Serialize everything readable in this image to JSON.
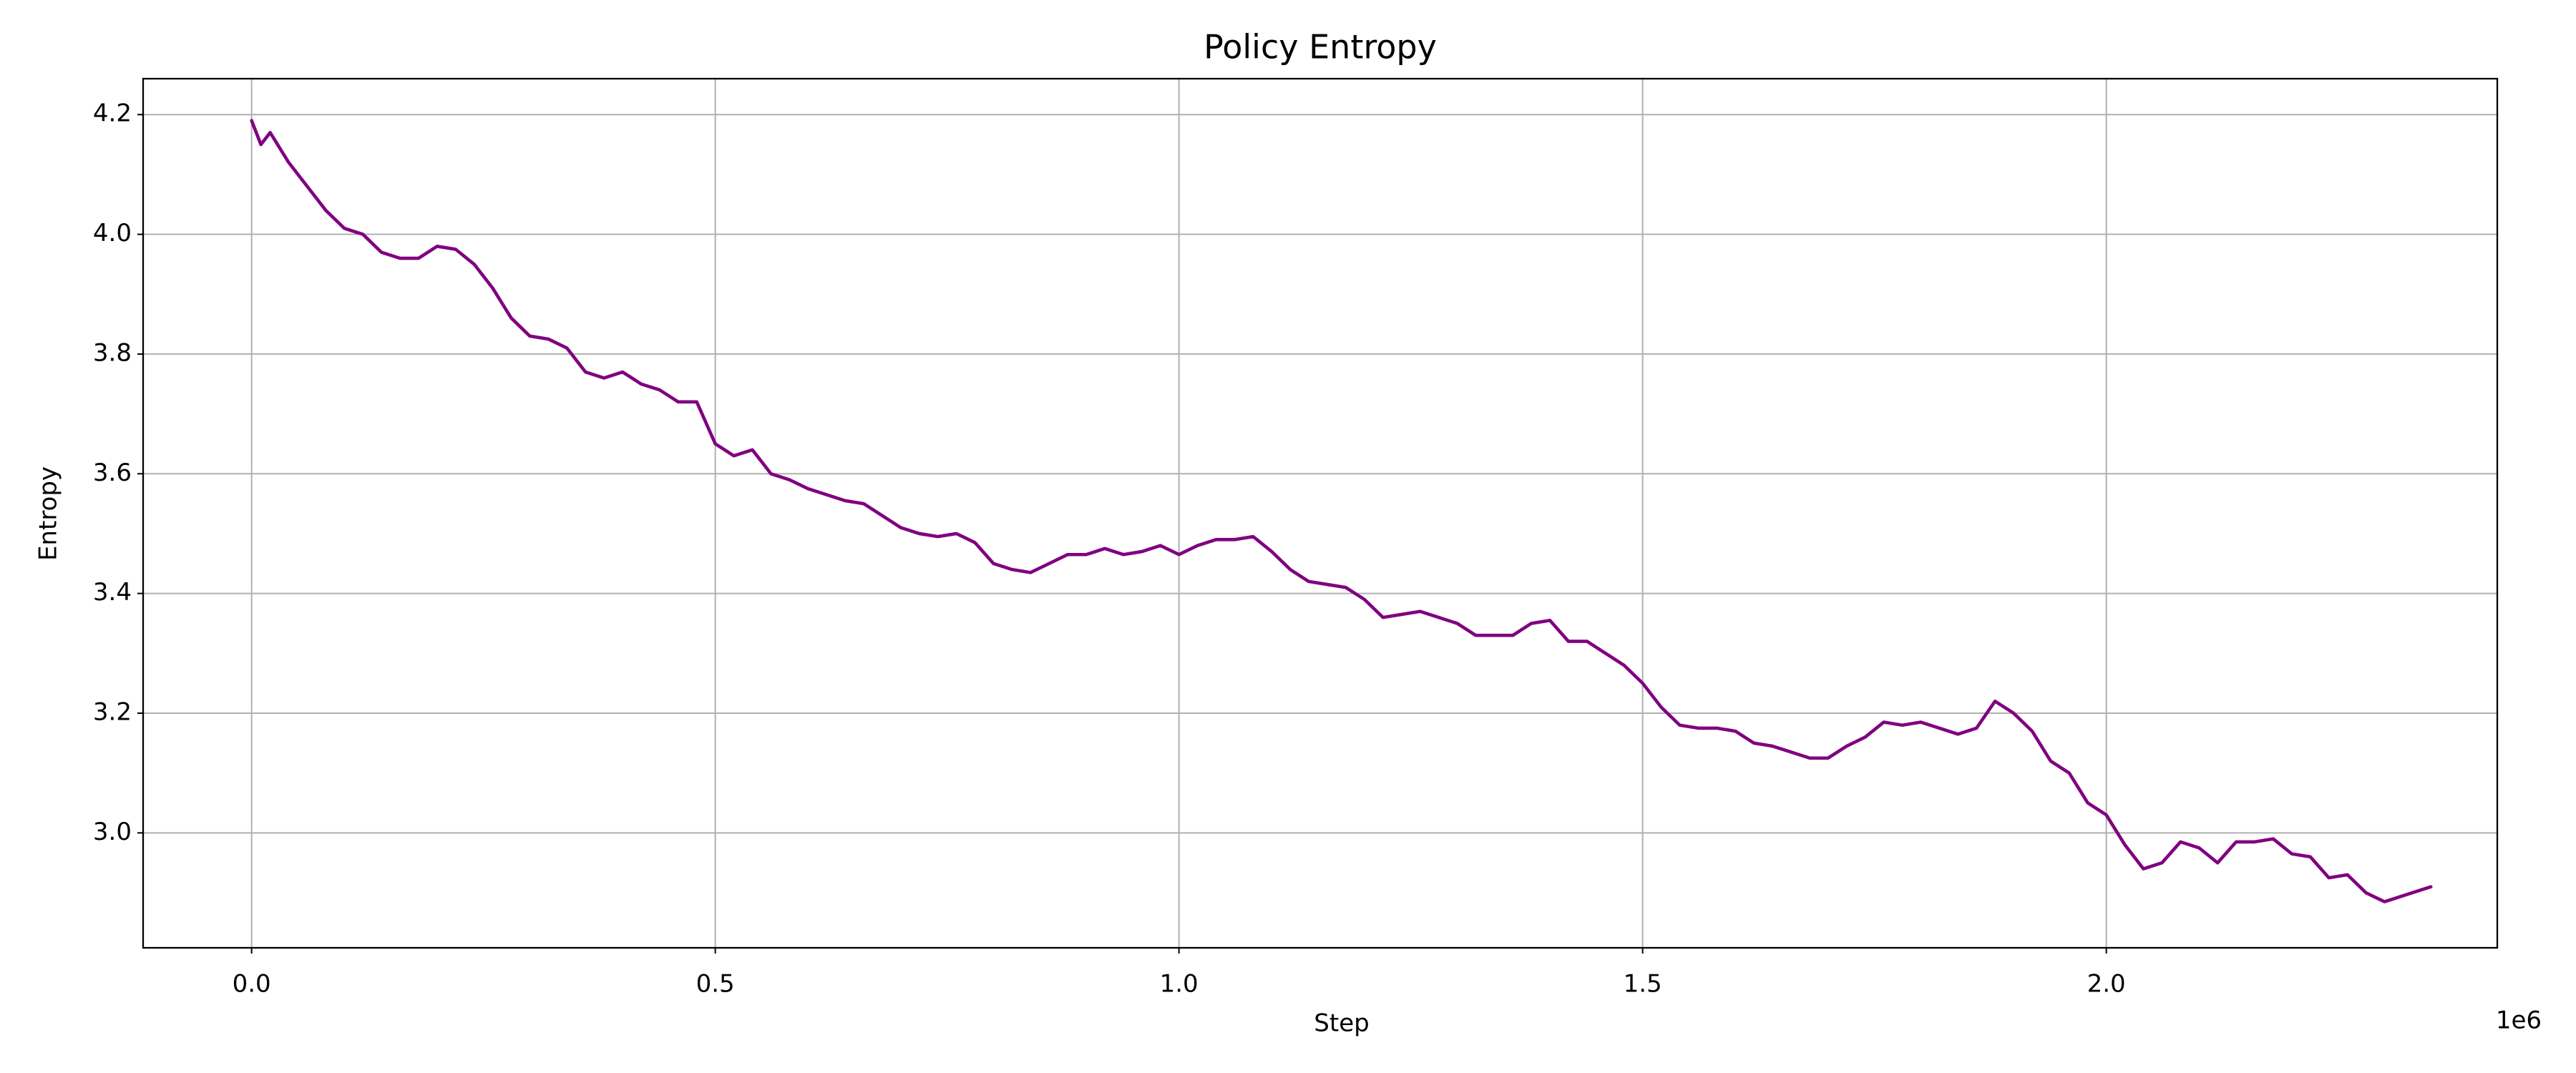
{
  "chart_data": {
    "type": "line",
    "title": "Policy Entropy",
    "x_label": "Step",
    "y_label": "Entropy",
    "x_offset_label": "1e6",
    "color": "#800080",
    "grid": true,
    "xlim": [
      -117000,
      2421600
    ],
    "ylim": [
      2.808,
      4.26
    ],
    "xticks": [
      {
        "value": 0,
        "label": "0.0"
      },
      {
        "value": 500000,
        "label": "0.5"
      },
      {
        "value": 1000000,
        "label": "1.0"
      },
      {
        "value": 1500000,
        "label": "1.5"
      },
      {
        "value": 2000000,
        "label": "2.0"
      }
    ],
    "yticks": [
      {
        "value": 3.0,
        "label": "3.0"
      },
      3.2,
      3.4,
      3.6,
      3.8,
      {
        "value": 4.0,
        "label": "4.0"
      },
      4.2
    ],
    "x": [
      0,
      10000,
      20000,
      40000,
      60000,
      80000,
      100000,
      120000,
      140000,
      160000,
      180000,
      200000,
      220000,
      240000,
      260000,
      280000,
      300000,
      320000,
      340000,
      360000,
      380000,
      400000,
      420000,
      440000,
      460000,
      480000,
      500000,
      520000,
      540000,
      560000,
      580000,
      600000,
      620000,
      640000,
      660000,
      680000,
      700000,
      720000,
      740000,
      760000,
      780000,
      800000,
      820000,
      840000,
      860000,
      880000,
      900000,
      920000,
      940000,
      960000,
      980000,
      1000000,
      1020000,
      1040000,
      1060000,
      1080000,
      1100000,
      1120000,
      1140000,
      1160000,
      1180000,
      1200000,
      1220000,
      1240000,
      1260000,
      1280000,
      1300000,
      1320000,
      1340000,
      1360000,
      1380000,
      1400000,
      1420000,
      1440000,
      1460000,
      1480000,
      1500000,
      1520000,
      1540000,
      1560000,
      1580000,
      1600000,
      1620000,
      1640000,
      1660000,
      1680000,
      1700000,
      1720000,
      1740000,
      1760000,
      1780000,
      1800000,
      1820000,
      1840000,
      1860000,
      1880000,
      1900000,
      1920000,
      1940000,
      1960000,
      1980000,
      2000000,
      2020000,
      2040000,
      2060000,
      2080000,
      2100000,
      2120000,
      2140000,
      2160000,
      2180000,
      2200000,
      2220000,
      2240000,
      2260000,
      2280000,
      2300000,
      2320000,
      2340000,
      2350000
    ],
    "values": [
      4.19,
      4.15,
      4.17,
      4.12,
      4.08,
      4.04,
      4.01,
      4.0,
      3.97,
      3.96,
      3.96,
      3.98,
      3.975,
      3.95,
      3.91,
      3.86,
      3.83,
      3.825,
      3.81,
      3.77,
      3.76,
      3.77,
      3.75,
      3.74,
      3.72,
      3.72,
      3.65,
      3.63,
      3.64,
      3.6,
      3.59,
      3.575,
      3.565,
      3.555,
      3.55,
      3.53,
      3.51,
      3.5,
      3.495,
      3.5,
      3.485,
      3.45,
      3.44,
      3.435,
      3.45,
      3.465,
      3.465,
      3.475,
      3.465,
      3.47,
      3.48,
      3.465,
      3.48,
      3.49,
      3.49,
      3.495,
      3.47,
      3.44,
      3.42,
      3.415,
      3.41,
      3.39,
      3.36,
      3.365,
      3.37,
      3.36,
      3.35,
      3.33,
      3.33,
      3.33,
      3.35,
      3.355,
      3.32,
      3.32,
      3.3,
      3.28,
      3.25,
      3.21,
      3.18,
      3.175,
      3.175,
      3.17,
      3.15,
      3.145,
      3.135,
      3.125,
      3.125,
      3.145,
      3.16,
      3.185,
      3.18,
      3.185,
      3.175,
      3.165,
      3.175,
      3.22,
      3.2,
      3.17,
      3.12,
      3.1,
      3.05,
      3.03,
      2.98,
      2.94,
      2.95,
      2.985,
      2.975,
      2.95,
      2.985,
      2.985,
      2.99,
      2.965,
      2.96,
      2.925,
      2.93,
      2.9,
      2.885,
      2.895,
      2.905,
      2.91
    ]
  }
}
